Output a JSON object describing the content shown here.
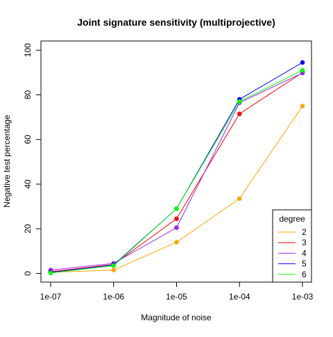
{
  "chart_data": {
    "type": "line",
    "title": "Joint signature sensitivity (multiprojective)",
    "xlabel": "Magnitude of noise",
    "ylabel": "Negative test percentage",
    "x": [
      "1e-07",
      "1e-06",
      "1e-05",
      "1e-04",
      "1e-03"
    ],
    "ylim": [
      -4,
      104
    ],
    "yticks": [
      0,
      20,
      40,
      60,
      80,
      100
    ],
    "grid": false,
    "legend": {
      "title": "degree",
      "position": "bottom-right"
    },
    "series": [
      {
        "name": "2",
        "color": "#FFA500",
        "values": [
          0.5,
          1.5,
          14,
          33.5,
          75
        ]
      },
      {
        "name": "3",
        "color": "#FF0000",
        "values": [
          0.8,
          4,
          24.5,
          71.5,
          90
        ]
      },
      {
        "name": "4",
        "color": "#A020F0",
        "values": [
          1.5,
          4.5,
          20.5,
          76.5,
          89.8
        ]
      },
      {
        "name": "5",
        "color": "#0000FF",
        "values": [
          0.5,
          3.8,
          29,
          78,
          94.5
        ]
      },
      {
        "name": "6",
        "color": "#00FF00",
        "values": [
          0.2,
          3.5,
          29,
          77,
          91
        ]
      }
    ]
  }
}
